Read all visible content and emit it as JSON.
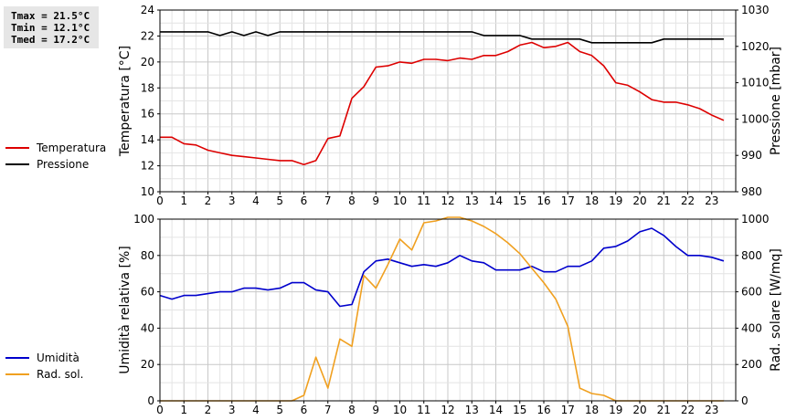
{
  "stats": {
    "tmax": "Tmax = 21.5°C",
    "tmin": "Tmin = 12.1°C",
    "tmed": "Tmed = 17.2°C"
  },
  "chart_data": [
    {
      "type": "line",
      "x_ticks": [
        0,
        1,
        2,
        3,
        4,
        5,
        6,
        7,
        8,
        9,
        10,
        11,
        12,
        13,
        14,
        15,
        16,
        17,
        18,
        19,
        20,
        21,
        22,
        23
      ],
      "xlim": [
        0,
        24
      ],
      "ylabel_left": "Temperatura [°C]",
      "ylabel_right": "Pressione [mbar]",
      "ylim_left": [
        10,
        24
      ],
      "yticks_left": [
        10,
        12,
        14,
        16,
        18,
        20,
        22,
        24
      ],
      "ylim_right": [
        980,
        1030
      ],
      "yticks_right": [
        980,
        990,
        1000,
        1010,
        1020,
        1030
      ],
      "grid": true,
      "legend_position": "left",
      "series": [
        {
          "name": "Temperatura",
          "axis": "left",
          "color": "#dd0000",
          "x": [
            0,
            0.5,
            1,
            1.5,
            2,
            2.5,
            3,
            3.5,
            4,
            4.5,
            5,
            5.5,
            6,
            6.5,
            7,
            7.5,
            8,
            8.5,
            9,
            9.5,
            10,
            10.5,
            11,
            11.5,
            12,
            12.5,
            13,
            13.5,
            14,
            14.5,
            15,
            15.5,
            16,
            16.5,
            17,
            17.5,
            18,
            18.5,
            19,
            19.5,
            20,
            20.5,
            21,
            21.5,
            22,
            22.5,
            23,
            23.5
          ],
          "y": [
            14.2,
            14.2,
            13.7,
            13.6,
            13.2,
            13.0,
            12.8,
            12.7,
            12.6,
            12.5,
            12.4,
            12.4,
            12.1,
            12.4,
            14.1,
            14.3,
            17.2,
            18.1,
            19.6,
            19.7,
            20.0,
            19.9,
            20.2,
            20.2,
            20.1,
            20.3,
            20.2,
            20.5,
            20.5,
            20.8,
            21.3,
            21.5,
            21.1,
            21.2,
            21.5,
            20.8,
            20.5,
            19.7,
            18.4,
            18.2,
            17.7,
            17.1,
            16.9,
            16.9,
            16.7,
            16.4,
            15.9,
            15.5
          ]
        },
        {
          "name": "Pressione",
          "axis": "right",
          "color": "#000000",
          "x": [
            0,
            0.5,
            1,
            1.5,
            2,
            2.5,
            3,
            3.5,
            4,
            4.5,
            5,
            5.5,
            6,
            6.5,
            7,
            7.5,
            8,
            8.5,
            9,
            9.5,
            10,
            10.5,
            11,
            11.5,
            12,
            12.5,
            13,
            13.5,
            14,
            14.5,
            15,
            15.5,
            16,
            16.5,
            17,
            17.5,
            18,
            18.5,
            19,
            19.5,
            20,
            20.5,
            21,
            21.5,
            22,
            22.5,
            23,
            23.5
          ],
          "y": [
            1024,
            1024,
            1024,
            1024,
            1024,
            1023,
            1024,
            1023,
            1024,
            1023,
            1024,
            1024,
            1024,
            1024,
            1024,
            1024,
            1024,
            1024,
            1024,
            1024,
            1024,
            1024,
            1024,
            1024,
            1024,
            1024,
            1024,
            1023,
            1023,
            1023,
            1023,
            1022,
            1022,
            1022,
            1022,
            1022,
            1021,
            1021,
            1021,
            1021,
            1021,
            1021,
            1022,
            1022,
            1022,
            1022,
            1022,
            1022
          ]
        }
      ]
    },
    {
      "type": "line",
      "x_ticks": [
        0,
        1,
        2,
        3,
        4,
        5,
        6,
        7,
        8,
        9,
        10,
        11,
        12,
        13,
        14,
        15,
        16,
        17,
        18,
        19,
        20,
        21,
        22,
        23
      ],
      "xlim": [
        0,
        24
      ],
      "ylabel_left": "Umidità relativa [%]",
      "ylabel_right": "Rad. solare [W/mq]",
      "ylim_left": [
        0,
        100
      ],
      "yticks_left": [
        0,
        20,
        40,
        60,
        80,
        100
      ],
      "ylim_right": [
        0,
        1000
      ],
      "yticks_right": [
        0,
        200,
        400,
        600,
        800,
        1000
      ],
      "grid": true,
      "legend_position": "left",
      "series": [
        {
          "name": "Umidità",
          "axis": "left",
          "color": "#0000cc",
          "x": [
            0,
            0.5,
            1,
            1.5,
            2,
            2.5,
            3,
            3.5,
            4,
            4.5,
            5,
            5.5,
            6,
            6.5,
            7,
            7.5,
            8,
            8.5,
            9,
            9.5,
            10,
            10.5,
            11,
            11.5,
            12,
            12.5,
            13,
            13.5,
            14,
            14.5,
            15,
            15.5,
            16,
            16.5,
            17,
            17.5,
            18,
            18.5,
            19,
            19.5,
            20,
            20.5,
            21,
            21.5,
            22,
            22.5,
            23,
            23.5
          ],
          "y": [
            58,
            56,
            58,
            58,
            59,
            60,
            60,
            62,
            62,
            61,
            62,
            65,
            65,
            61,
            60,
            52,
            53,
            71,
            77,
            78,
            76,
            74,
            75,
            74,
            76,
            80,
            77,
            76,
            72,
            72,
            72,
            74,
            71,
            71,
            74,
            74,
            77,
            84,
            85,
            88,
            93,
            95,
            91,
            85,
            80,
            80,
            79,
            77
          ]
        },
        {
          "name": "Rad. sol.",
          "axis": "right",
          "color": "#f0a020",
          "x": [
            0,
            0.5,
            1,
            1.5,
            2,
            2.5,
            3,
            3.5,
            4,
            4.5,
            5,
            5.5,
            6,
            6.5,
            7,
            7.5,
            8,
            8.5,
            9,
            9.5,
            10,
            10.5,
            11,
            11.5,
            12,
            12.5,
            13,
            13.5,
            14,
            14.5,
            15,
            15.5,
            16,
            16.5,
            17,
            17.5,
            18,
            18.5,
            19,
            19.5,
            20,
            20.5,
            21,
            21.5,
            22,
            22.5,
            23,
            23.5
          ],
          "y": [
            0,
            0,
            0,
            0,
            0,
            0,
            0,
            0,
            0,
            0,
            0,
            0,
            30,
            240,
            70,
            340,
            300,
            690,
            620,
            750,
            890,
            830,
            980,
            990,
            1010,
            1010,
            990,
            960,
            920,
            870,
            810,
            730,
            650,
            560,
            410,
            70,
            40,
            30,
            0,
            0,
            0,
            0,
            0,
            0,
            0,
            0,
            0,
            0
          ]
        }
      ]
    }
  ]
}
